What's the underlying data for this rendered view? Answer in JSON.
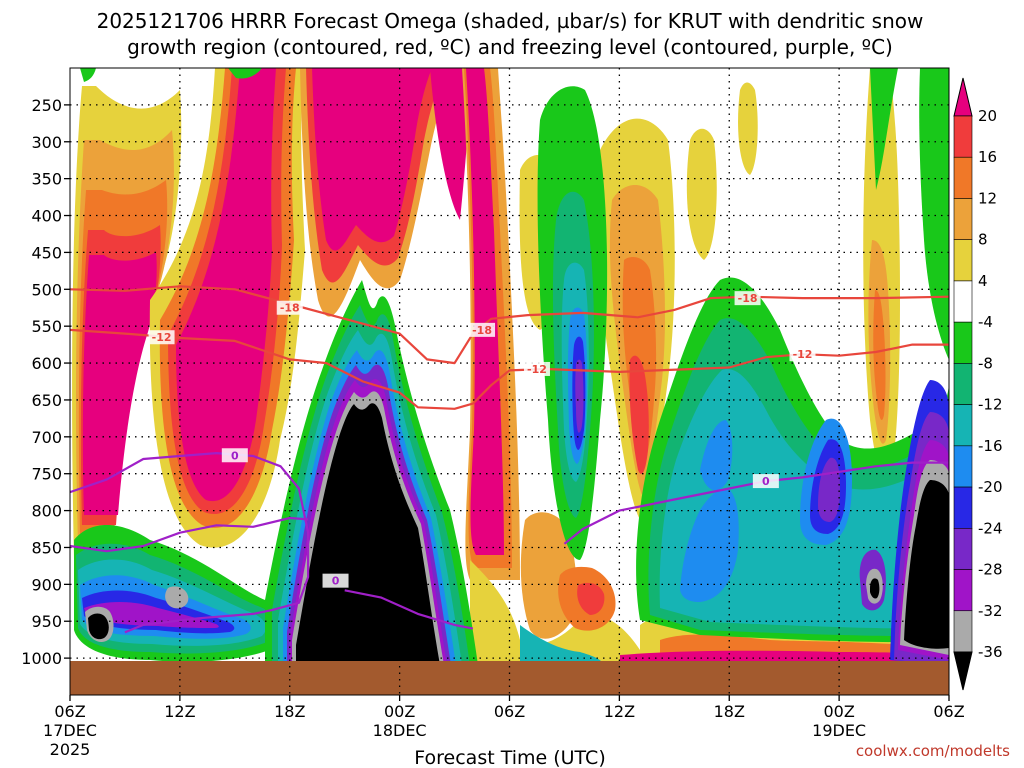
{
  "chart_data": {
    "type": "heatmap",
    "title": {
      "line1": "2025121706 HRRR Forecast Omega (shaded, µbar/s) for KRUT with dendritic snow",
      "line2": "growth region (contoured, red, ºC) and freezing level (contoured, purple, ºC)"
    },
    "xlabel": "Forecast Time (UTC)",
    "ylabel": "",
    "x_range_hours": [
      0,
      48
    ],
    "y_range_mb": [
      200,
      1050
    ],
    "y_ticks": [
      250,
      300,
      350,
      400,
      450,
      500,
      550,
      600,
      650,
      700,
      750,
      800,
      850,
      900,
      950,
      1000
    ],
    "y_tick_labels": [
      "250",
      "300",
      "350",
      "400",
      "450",
      "500",
      "550",
      "600",
      "650",
      "700",
      "750",
      "800",
      "850",
      "900",
      "950",
      "1000"
    ],
    "x_ticks": [
      {
        "hour": 0,
        "label": "06Z",
        "date": "17DEC",
        "year": "2025"
      },
      {
        "hour": 6,
        "label": "12Z"
      },
      {
        "hour": 12,
        "label": "18Z"
      },
      {
        "hour": 18,
        "label": "00Z",
        "date": "18DEC"
      },
      {
        "hour": 24,
        "label": "06Z"
      },
      {
        "hour": 30,
        "label": "12Z"
      },
      {
        "hour": 36,
        "label": "18Z"
      },
      {
        "hour": 42,
        "label": "00Z",
        "date": "19DEC"
      },
      {
        "hour": 48,
        "label": "06Z"
      }
    ],
    "colorbar": {
      "labels": [
        "20",
        "16",
        "12",
        "8",
        "4",
        "-4",
        "-8",
        "-12",
        "-16",
        "-20",
        "-24",
        "-28",
        "-32",
        "-36"
      ],
      "levels": [
        {
          "range": "> 20",
          "color": "#e6007e"
        },
        {
          "range": "16 to 20",
          "color": "#f03c3c"
        },
        {
          "range": "12 to 16",
          "color": "#f07828"
        },
        {
          "range": "8 to 12",
          "color": "#eca23a"
        },
        {
          "range": "4 to 8",
          "color": "#e6d23c"
        },
        {
          "range": "-4 to 4",
          "color": "#ffffff"
        },
        {
          "range": "-8 to -4",
          "color": "#19c81a"
        },
        {
          "range": "-12 to -8",
          "color": "#12b472"
        },
        {
          "range": "-16 to -12",
          "color": "#16b4b4"
        },
        {
          "range": "-20 to -16",
          "color": "#1e8cf0"
        },
        {
          "range": "-24 to -20",
          "color": "#2828e6"
        },
        {
          "range": "-28 to -24",
          "color": "#7828c8"
        },
        {
          "range": "-32 to -28",
          "color": "#a014c8"
        },
        {
          "range": "-36 to -32",
          "color": "#aaaaaa"
        },
        {
          "range": "< -36",
          "color": "#000000"
        }
      ]
    },
    "red_contours": [
      {
        "label": "-18",
        "color": "#e8463c",
        "points": [
          [
            0,
            500
          ],
          [
            3,
            502
          ],
          [
            6,
            496
          ],
          [
            9,
            500
          ],
          [
            12,
            520
          ],
          [
            15,
            540
          ],
          [
            18,
            560
          ],
          [
            19.5,
            595
          ],
          [
            21,
            600
          ],
          [
            22,
            560
          ],
          [
            23,
            540
          ],
          [
            25,
            535
          ],
          [
            28,
            532
          ],
          [
            31,
            538
          ],
          [
            33,
            528
          ],
          [
            35,
            512
          ],
          [
            37,
            510
          ],
          [
            40,
            512
          ],
          [
            44,
            512
          ],
          [
            48,
            510
          ]
        ],
        "label_positions": [
          [
            12,
            525
          ],
          [
            22.5,
            555
          ],
          [
            37,
            512
          ]
        ]
      },
      {
        "label": "-12",
        "color": "#e8463c",
        "points": [
          [
            0,
            555
          ],
          [
            3,
            560
          ],
          [
            6,
            566
          ],
          [
            9,
            570
          ],
          [
            12,
            595
          ],
          [
            14,
            600
          ],
          [
            16,
            625
          ],
          [
            18,
            640
          ],
          [
            19,
            660
          ],
          [
            21,
            662
          ],
          [
            22,
            655
          ],
          [
            23,
            630
          ],
          [
            24,
            610
          ],
          [
            26,
            608
          ],
          [
            30,
            612
          ],
          [
            34,
            608
          ],
          [
            36,
            606
          ],
          [
            38,
            592
          ],
          [
            40,
            588
          ],
          [
            42,
            590
          ],
          [
            44,
            585
          ],
          [
            46,
            575
          ],
          [
            48,
            575
          ]
        ],
        "label_positions": [
          [
            5,
            565
          ],
          [
            25.5,
            608
          ],
          [
            40,
            588
          ]
        ]
      }
    ],
    "purple_contours": [
      {
        "label": "0",
        "color": "#a020c8",
        "points": [
          [
            0,
            775
          ],
          [
            2,
            758
          ],
          [
            4,
            730
          ],
          [
            6,
            726
          ],
          [
            8,
            722
          ],
          [
            10,
            726
          ],
          [
            11.5,
            740
          ],
          [
            12.5,
            770
          ],
          [
            13,
            830
          ],
          [
            13,
            890
          ],
          [
            12.5,
            925
          ],
          [
            11,
            935
          ],
          [
            10,
            940
          ],
          [
            7,
            946
          ],
          [
            4,
            955
          ],
          [
            3,
            965
          ]
        ],
        "label_positions": [
          [
            9,
            725
          ],
          [
            14.5,
            895
          ]
        ]
      },
      {
        "label": "0",
        "color": "#a020c8",
        "points": [
          [
            0,
            848
          ],
          [
            2,
            855
          ],
          [
            4,
            848
          ],
          [
            6,
            830
          ],
          [
            8,
            820
          ],
          [
            10,
            822
          ],
          [
            12,
            810
          ],
          [
            13,
            812
          ]
        ]
      },
      {
        "label": "0",
        "color": "#a020c8",
        "points": [
          [
            15,
            908
          ],
          [
            17,
            918
          ],
          [
            19,
            940
          ],
          [
            21,
            955
          ],
          [
            22,
            960
          ]
        ]
      },
      {
        "label": "0",
        "color": "#a020c8",
        "points": [
          [
            27,
            845
          ],
          [
            28,
            825
          ],
          [
            30,
            800
          ],
          [
            33,
            785
          ],
          [
            36,
            770
          ],
          [
            38,
            760
          ],
          [
            40,
            755
          ],
          [
            44,
            740
          ],
          [
            46,
            735
          ],
          [
            48,
            735
          ]
        ],
        "label_positions": [
          [
            38,
            760
          ]
        ]
      }
    ],
    "credit": "coolwx.com/modelts"
  }
}
